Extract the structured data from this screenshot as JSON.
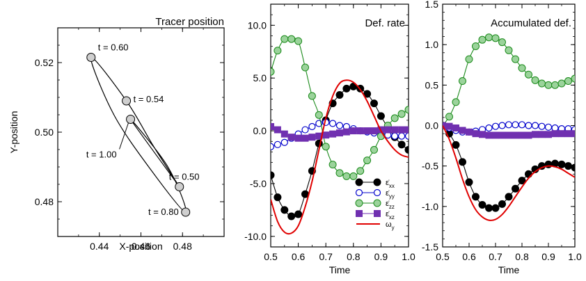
{
  "chart_data": [
    {
      "type": "line",
      "title": "Tracer position",
      "xlabel": "X-position",
      "ylabel": "Y-position",
      "xlim": [
        0.42,
        0.5
      ],
      "ylim": [
        0.47,
        0.53
      ],
      "xticks": [
        0.44,
        0.46,
        0.48
      ],
      "xtick_labels": [
        "0.44",
        "0.46",
        "0.48"
      ],
      "yticks": [
        0.48,
        0.5,
        0.52
      ],
      "ytick_labels": [
        "0.48",
        "0.50",
        "0.52"
      ],
      "grid": false,
      "path": {
        "x": [
          0.4785,
          0.466,
          0.453,
          0.436,
          0.447,
          0.465,
          0.4815,
          0.473,
          0.455,
          0.4785
        ],
        "y": [
          0.4843,
          0.496,
          0.509,
          0.5215,
          0.505,
          0.489,
          0.477,
          0.49,
          0.5037,
          0.4843
        ]
      },
      "markers": [
        {
          "label": "t = 0.60",
          "x": 0.436,
          "y": 0.5215
        },
        {
          "label": "t = 0.54",
          "x": 0.453,
          "y": 0.509
        },
        {
          "label": "t = 1.00",
          "x": 0.455,
          "y": 0.5037
        },
        {
          "label": "t = 0.50",
          "x": 0.4785,
          "y": 0.4843
        },
        {
          "label": "t = 0.80",
          "x": 0.4815,
          "y": 0.477
        }
      ]
    },
    {
      "type": "line",
      "title": "Def. rate",
      "xlabel": "Time",
      "ylabel": "",
      "xlim": [
        0.5,
        1.0
      ],
      "ylim": [
        -11,
        12
      ],
      "xticks": [
        0.5,
        0.6,
        0.7,
        0.8,
        0.9,
        1.0
      ],
      "xtick_labels": [
        "0.5",
        "0.6",
        "0.7",
        "0.8",
        "0.9",
        "1.0"
      ],
      "yticks": [
        -10,
        -5,
        0,
        5,
        10
      ],
      "ytick_labels": [
        "-10.0",
        "-5.0",
        "0.0",
        "5.0",
        "10.0"
      ],
      "grid": false,
      "legend_position": "bottom-right",
      "x": [
        0.5,
        0.525,
        0.55,
        0.575,
        0.6,
        0.625,
        0.65,
        0.675,
        0.7,
        0.725,
        0.75,
        0.775,
        0.8,
        0.825,
        0.85,
        0.875,
        0.9,
        0.925,
        0.95,
        0.975,
        1.0
      ],
      "series": [
        {
          "name": "ε̇xx",
          "legend_main": "ε̇",
          "legend_sub": "xx",
          "color": "#000000",
          "marker": "circle-filled",
          "values": [
            -4.2,
            -6.3,
            -7.5,
            -8.1,
            -7.9,
            -6.0,
            -3.8,
            -1.2,
            1.0,
            2.6,
            3.4,
            4.0,
            4.2,
            4.0,
            3.5,
            2.6,
            1.4,
            0.3,
            -0.6,
            -1.3,
            -1.8
          ]
        },
        {
          "name": "ε̇yy",
          "legend_main": "ε̇",
          "legend_sub": "yy",
          "color": "#0000cc",
          "marker": "circle-open",
          "values": [
            -1.5,
            -1.3,
            -1.1,
            -0.7,
            -0.3,
            0.1,
            0.4,
            0.7,
            0.8,
            0.7,
            0.5,
            0.4,
            0.2,
            0.0,
            -0.1,
            -0.2,
            -0.3,
            -0.4,
            -0.5,
            -0.5,
            -0.5
          ]
        },
        {
          "name": "ε̇zz",
          "legend_main": "ε̇",
          "legend_sub": "zz",
          "color": "#1a8a1a",
          "fill": "#9bd39b",
          "marker": "circle-filled",
          "values": [
            5.6,
            7.6,
            8.7,
            8.7,
            8.5,
            6.0,
            3.3,
            1.5,
            -1.5,
            -3.2,
            -4.0,
            -4.3,
            -4.3,
            -3.8,
            -2.8,
            -1.8,
            -0.5,
            0.5,
            1.2,
            1.6,
            2.0
          ]
        },
        {
          "name": "ε̇xz",
          "legend_main": "ε̇",
          "legend_sub": "xz",
          "color": "#7030b0",
          "marker": "square-filled",
          "values": [
            0.4,
            0.1,
            -0.3,
            -0.6,
            -0.7,
            -0.7,
            -0.6,
            -0.5,
            -0.4,
            -0.3,
            -0.2,
            -0.1,
            0.0,
            0.0,
            0.0,
            0.0,
            0.1,
            0.1,
            0.1,
            0.1,
            0.1
          ]
        },
        {
          "name": "ωy",
          "legend_main": "ω",
          "legend_sub": "y",
          "color": "#e00000",
          "marker": "none",
          "curve": {
            "x": [
              0.5,
              0.525,
              0.55,
              0.575,
              0.6,
              0.625,
              0.65,
              0.675,
              0.7,
              0.725,
              0.75,
              0.775,
              0.8,
              0.825,
              0.85,
              0.875,
              0.9,
              0.925,
              0.95,
              0.975,
              1.0
            ],
            "y": [
              -6.5,
              -8.6,
              -9.6,
              -9.7,
              -9.0,
              -7.2,
              -4.8,
              -1.8,
              1.2,
              3.3,
              4.5,
              4.8,
              4.6,
              3.9,
              2.8,
              1.4,
              0.0,
              -1.0,
              -1.8,
              -2.3,
              -2.5
            ]
          }
        }
      ]
    },
    {
      "type": "line",
      "title": "Accumulated def.",
      "xlabel": "Time",
      "ylabel": "",
      "xlim": [
        0.5,
        1.0
      ],
      "ylim": [
        -1.5,
        1.5
      ],
      "xticks": [
        0.5,
        0.6,
        0.7,
        0.8,
        0.9,
        1.0
      ],
      "xtick_labels": [
        "0.5",
        "0.6",
        "0.7",
        "0.8",
        "0.9",
        "1.0"
      ],
      "yticks": [
        -1.5,
        -1.0,
        -0.5,
        0.0,
        0.5,
        1.0,
        1.5
      ],
      "ytick_labels": [
        "-1.5",
        "-1.0",
        "-0.5",
        "0.0",
        "0.5",
        "1.0",
        "1.5"
      ],
      "grid": false,
      "x": [
        0.5,
        0.525,
        0.55,
        0.575,
        0.6,
        0.625,
        0.65,
        0.675,
        0.7,
        0.725,
        0.75,
        0.775,
        0.8,
        0.825,
        0.85,
        0.875,
        0.9,
        0.925,
        0.95,
        0.975,
        1.0
      ],
      "series": [
        {
          "name": "xx",
          "color": "#000000",
          "marker": "circle-filled",
          "values": [
            0.0,
            -0.1,
            -0.24,
            -0.45,
            -0.7,
            -0.88,
            -0.98,
            -1.02,
            -1.02,
            -0.97,
            -0.88,
            -0.78,
            -0.68,
            -0.6,
            -0.54,
            -0.5,
            -0.48,
            -0.47,
            -0.48,
            -0.5,
            -0.52
          ]
        },
        {
          "name": "yy",
          "color": "#0000cc",
          "marker": "circle-open",
          "values": [
            0.0,
            -0.03,
            -0.06,
            -0.08,
            -0.08,
            -0.07,
            -0.05,
            -0.03,
            -0.01,
            0.0,
            0.01,
            0.01,
            0.01,
            0.0,
            0.0,
            -0.01,
            -0.02,
            -0.03,
            -0.04,
            -0.04,
            -0.05
          ]
        },
        {
          "name": "zz",
          "color": "#1a8a1a",
          "fill": "#9bd39b",
          "marker": "circle-filled",
          "values": [
            0.0,
            0.11,
            0.29,
            0.55,
            0.82,
            0.98,
            1.06,
            1.09,
            1.08,
            1.03,
            0.93,
            0.82,
            0.71,
            0.63,
            0.56,
            0.52,
            0.5,
            0.5,
            0.52,
            0.55,
            0.58
          ]
        },
        {
          "name": "xz",
          "color": "#7030b0",
          "marker": "square-filled",
          "values": [
            0.0,
            -0.01,
            -0.03,
            -0.06,
            -0.08,
            -0.1,
            -0.11,
            -0.12,
            -0.12,
            -0.12,
            -0.12,
            -0.12,
            -0.12,
            -0.12,
            -0.11,
            -0.11,
            -0.11,
            -0.1,
            -0.1,
            -0.1,
            -0.1
          ]
        },
        {
          "name": "y",
          "color": "#e00000",
          "marker": "none",
          "curve": {
            "x": [
              0.5,
              0.525,
              0.55,
              0.575,
              0.6,
              0.625,
              0.65,
              0.675,
              0.7,
              0.725,
              0.75,
              0.775,
              0.8,
              0.825,
              0.85,
              0.875,
              0.9,
              0.925,
              0.95,
              0.975,
              1.0
            ],
            "y": [
              0.0,
              -0.17,
              -0.4,
              -0.66,
              -0.88,
              -1.04,
              -1.13,
              -1.17,
              -1.16,
              -1.1,
              -1.0,
              -0.88,
              -0.76,
              -0.65,
              -0.57,
              -0.52,
              -0.5,
              -0.51,
              -0.54,
              -0.59,
              -0.64
            ]
          }
        }
      ]
    }
  ]
}
